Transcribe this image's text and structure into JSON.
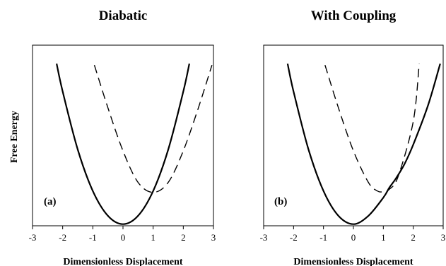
{
  "y_axis_label": "Free Energy",
  "chart_data": [
    {
      "type": "line",
      "title": "Diabatic",
      "panel_label": "(a)",
      "xlabel": "Dimensionless Displacement",
      "ylabel": "Free Energy",
      "xlim": [
        -3,
        3
      ],
      "xticks": [
        -3,
        -2,
        -1,
        0,
        1,
        2,
        3
      ],
      "grid": false,
      "series": [
        {
          "style": "solid",
          "x": [
            -2.2,
            -2.0,
            -1.5,
            -1.0,
            -0.5,
            0.0,
            0.5,
            1.0,
            1.5,
            2.0,
            2.2
          ],
          "y": [
            4.84,
            4.0,
            2.25,
            1.0,
            0.25,
            0.0,
            0.25,
            1.0,
            2.25,
            4.0,
            4.84
          ]
        },
        {
          "style": "dashed",
          "x": [
            -0.95,
            -0.5,
            0.0,
            0.5,
            1.0,
            1.5,
            2.0,
            2.5,
            2.95
          ],
          "y": [
            4.8,
            3.51,
            2.21,
            1.26,
            0.96,
            1.26,
            2.21,
            3.51,
            4.8
          ]
        }
      ]
    },
    {
      "type": "line",
      "title": "With Coupling",
      "panel_label": "(b)",
      "xlabel": "Dimensionless Displacement",
      "ylabel": "Free Energy",
      "xlim": [
        -3,
        3
      ],
      "xticks": [
        -3,
        -2,
        -1,
        0,
        1,
        2,
        3
      ],
      "grid": false,
      "series": [
        {
          "style": "solid",
          "x": [
            -2.2,
            -2.0,
            -1.5,
            -1.0,
            -0.5,
            0.0,
            0.5,
            1.0,
            1.2,
            1.4,
            1.7,
            2.0,
            2.5,
            2.9
          ],
          "y": [
            4.84,
            4.0,
            2.25,
            1.0,
            0.25,
            0.0,
            0.25,
            0.8,
            1.1,
            1.35,
            1.8,
            2.4,
            3.6,
            4.84
          ]
        },
        {
          "style": "dashed",
          "x": [
            -0.95,
            -0.5,
            0.0,
            0.5,
            0.8,
            1.0,
            1.2,
            1.5,
            2.0,
            2.2
          ],
          "y": [
            4.8,
            3.51,
            2.21,
            1.26,
            1.0,
            0.98,
            1.05,
            1.45,
            3.1,
            4.84
          ]
        }
      ]
    }
  ]
}
